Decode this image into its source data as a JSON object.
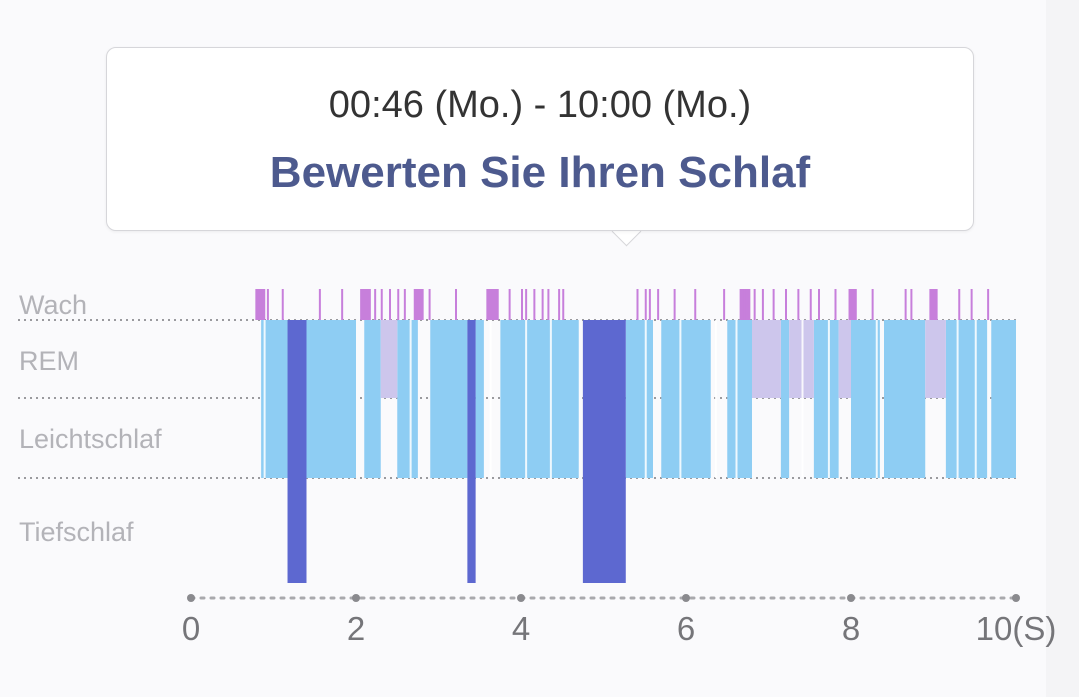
{
  "tooltip": {
    "time_range": "00:46 (Mo.) - 10:00 (Mo.)",
    "rate_label": "Bewerten Sie Ihren Schlaf"
  },
  "chart_data": {
    "type": "hypnogram",
    "stages": [
      "Wach",
      "REM",
      "Leichtschlaf",
      "Tiefschlaf"
    ],
    "x_ticks": [
      "0",
      "2",
      "4",
      "6",
      "8",
      "10(S)"
    ],
    "xlim": [
      0,
      10
    ],
    "colors": {
      "Wach": "#c77fdb",
      "REM": "#cdc6ec",
      "Leichtschlaf": "#8ecdf3",
      "Tiefschlaf": "#5d68d0",
      "gridline": "#9a9a9e",
      "axis": "#a9a9ad"
    },
    "segments": {
      "Tiefschlaf": [
        [
          1.17,
          1.4
        ],
        [
          3.35,
          3.45
        ],
        [
          4.75,
          5.27
        ]
      ],
      "Leichtschlaf": [
        [
          0.85,
          1.17
        ],
        [
          1.4,
          2.0
        ],
        [
          2.1,
          2.3
        ],
        [
          2.5,
          2.75
        ],
        [
          2.9,
          3.35
        ],
        [
          3.45,
          3.55
        ],
        [
          3.75,
          4.7
        ],
        [
          5.27,
          5.6
        ],
        [
          5.7,
          6.3
        ],
        [
          6.5,
          6.8
        ],
        [
          7.15,
          7.25
        ],
        [
          7.55,
          7.85
        ],
        [
          8.0,
          8.35
        ],
        [
          8.4,
          8.9
        ],
        [
          9.15,
          9.65
        ],
        [
          9.7,
          10.0
        ]
      ],
      "REM": [
        [
          2.3,
          2.5
        ],
        [
          6.8,
          7.15
        ],
        [
          7.25,
          7.55
        ],
        [
          7.85,
          8.0
        ],
        [
          8.9,
          9.15
        ]
      ],
      "Wach": [
        [
          0.78,
          0.9
        ],
        [
          2.05,
          2.18
        ],
        [
          2.7,
          2.82
        ],
        [
          3.58,
          3.73
        ],
        [
          6.65,
          6.78
        ],
        [
          7.97,
          8.07
        ],
        [
          8.95,
          9.05
        ]
      ]
    },
    "rem_lines": [
      0.88,
      2.65,
      3.62,
      4.05,
      4.35,
      5.5,
      5.92,
      6.35,
      6.6,
      7.4,
      7.72,
      8.3,
      9.28,
      9.5
    ],
    "wake_lines": [
      0.92,
      1.1,
      1.55,
      1.82,
      2.22,
      2.3,
      2.4,
      2.5,
      2.58,
      2.88,
      3.2,
      3.85,
      4.0,
      4.05,
      4.15,
      4.25,
      4.32,
      4.45,
      4.5,
      5.4,
      5.5,
      5.55,
      5.65,
      5.85,
      6.1,
      6.45,
      6.7,
      6.82,
      6.92,
      7.05,
      7.2,
      7.35,
      7.5,
      7.6,
      7.8,
      8.25,
      8.65,
      8.72,
      9.3,
      9.45,
      9.65
    ]
  }
}
